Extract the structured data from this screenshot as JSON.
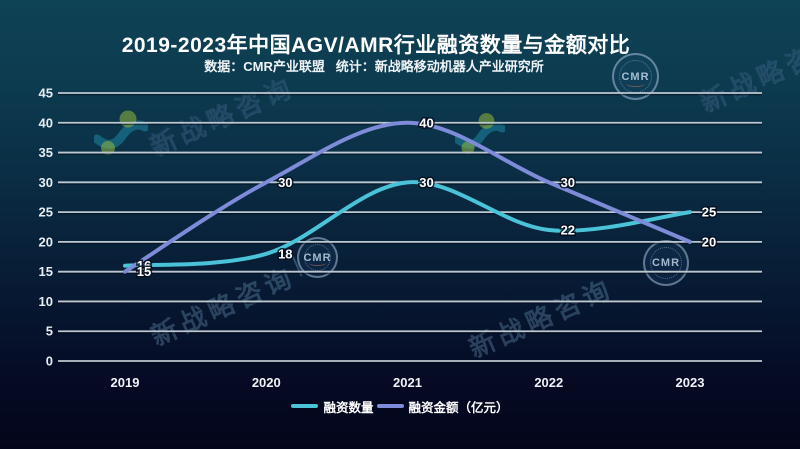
{
  "header": {
    "title": "2019-2023年中国AGV/AMR行业融资数量与金额对比",
    "subtitle": "数据：CMR产业联盟   统计：新战略移动机器人产业研究所"
  },
  "chart_data": {
    "type": "line",
    "x": [
      "2019",
      "2020",
      "2021",
      "2022",
      "2023"
    ],
    "series": [
      {
        "name": "融资数量",
        "color": "#4ac2d7",
        "values": [
          16,
          18,
          30,
          22,
          25
        ]
      },
      {
        "name": "融资金额（亿元）",
        "color": "#7e8bd8",
        "values": [
          15,
          30,
          40,
          30,
          20
        ]
      }
    ],
    "ylim": [
      0,
      45
    ],
    "ytick_step": 5,
    "grid": "horizontal",
    "legend_position": "bottom-center",
    "smooth": true,
    "data_labels": true
  },
  "watermark": {
    "brand_text": "新战略咨询",
    "badge_text": "CMR",
    "divider": "｜"
  },
  "colors": {
    "background_top": "#0e4255",
    "background_bottom": "#04051a",
    "gridline": "#bcc7d0",
    "text": "#ffffff",
    "series_count": "#4ac2d7",
    "series_amount": "#7e8bd8",
    "watermark_dot_green": "#93b73c"
  }
}
